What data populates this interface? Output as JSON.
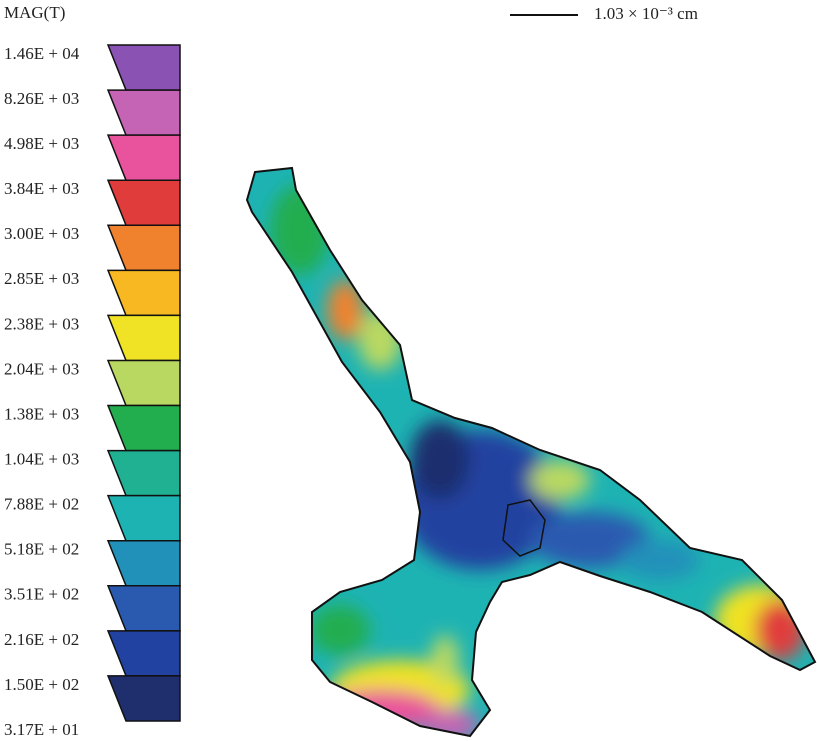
{
  "legend": {
    "title": "MAG(T)",
    "levels": [
      "1.46E + 04",
      "8.26E + 03",
      "4.98E + 03",
      "3.84E + 03",
      "3.00E + 03",
      "2.85E + 03",
      "2.38E + 03",
      "2.04E + 03",
      "1.38E + 03",
      "1.04E + 03",
      "7.88E + 02",
      "5.18E + 02",
      "3.51E + 02",
      "2.16E + 02",
      "1.50E + 02",
      "3.17E + 01"
    ],
    "colors": [
      "#8a52b2",
      "#c563b4",
      "#e9529c",
      "#e03c3c",
      "#f0822e",
      "#f8b822",
      "#f0e224",
      "#b9d862",
      "#22ad4f",
      "#1fb191",
      "#1eb3b3",
      "#2191ba",
      "#2a5ab0",
      "#2142a0",
      "#1f2f6e"
    ]
  },
  "scale_bar": {
    "label": "1.03 × 10⁻³ cm"
  }
}
